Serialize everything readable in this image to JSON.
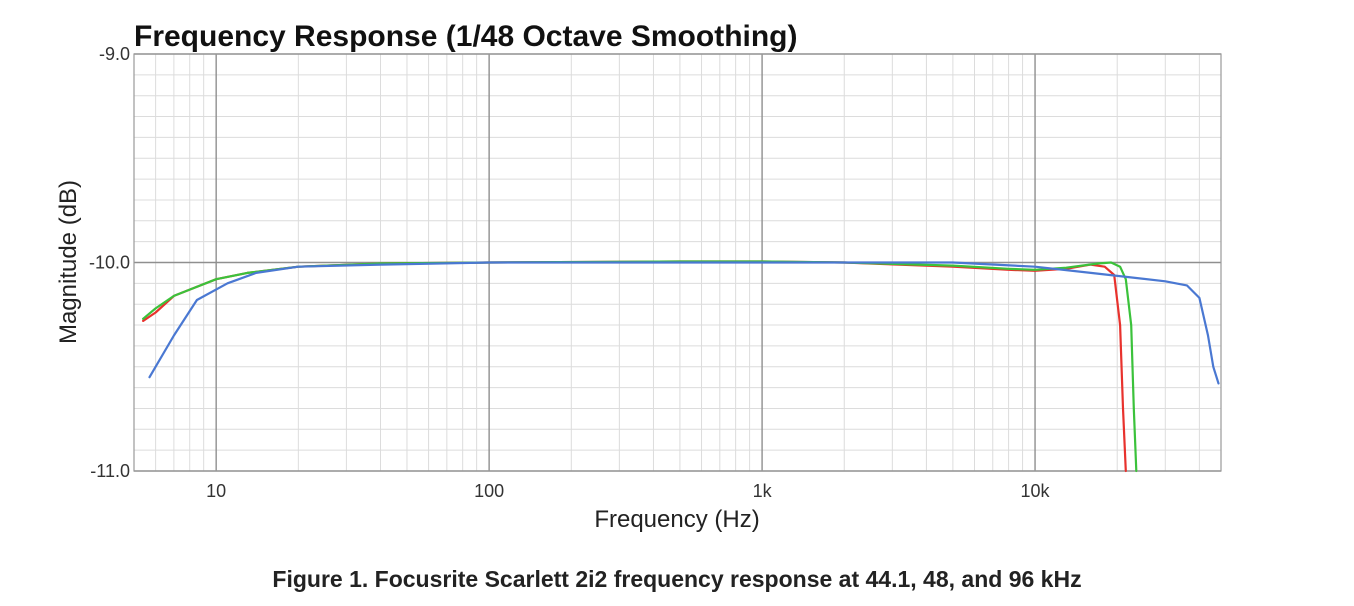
{
  "chart_data": {
    "type": "line",
    "title": "Frequency Response (1/48 Octave Smoothing)",
    "xlabel": "Frequency (Hz)",
    "ylabel": "Magnitude (dB)",
    "x_scale": "log",
    "xlim": [
      5,
      48000
    ],
    "ylim": [
      -11.0,
      -9.0
    ],
    "x_ticks": [
      {
        "value": 10,
        "label": "10"
      },
      {
        "value": 100,
        "label": "100"
      },
      {
        "value": 1000,
        "label": "1k"
      },
      {
        "value": 10000,
        "label": "10k"
      }
    ],
    "y_ticks": [
      {
        "value": -9.0,
        "label": "-9.0"
      },
      {
        "value": -10.0,
        "label": "-10.0"
      },
      {
        "value": -11.0,
        "label": "-11.0"
      }
    ],
    "grid": true,
    "series": [
      {
        "color": "#e8322d",
        "points": [
          [
            5.4,
            -10.28
          ],
          [
            6,
            -10.24
          ],
          [
            7,
            -10.16
          ],
          [
            8,
            -10.13
          ],
          [
            10,
            -10.08
          ],
          [
            13,
            -10.05
          ],
          [
            20,
            -10.02
          ],
          [
            40,
            -10.005
          ],
          [
            100,
            -10.0
          ],
          [
            500,
            -9.995
          ],
          [
            1000,
            -9.995
          ],
          [
            2000,
            -10.0
          ],
          [
            5000,
            -10.02
          ],
          [
            8000,
            -10.035
          ],
          [
            10000,
            -10.04
          ],
          [
            13000,
            -10.03
          ],
          [
            16000,
            -10.01
          ],
          [
            18000,
            -10.02
          ],
          [
            19500,
            -10.06
          ],
          [
            20500,
            -10.3
          ],
          [
            21000,
            -10.7
          ],
          [
            21500,
            -11.0
          ]
        ]
      },
      {
        "color": "#3bc23b",
        "points": [
          [
            5.4,
            -10.27
          ],
          [
            6,
            -10.22
          ],
          [
            7,
            -10.16
          ],
          [
            8,
            -10.13
          ],
          [
            10,
            -10.08
          ],
          [
            13,
            -10.05
          ],
          [
            20,
            -10.02
          ],
          [
            40,
            -10.005
          ],
          [
            100,
            -10.0
          ],
          [
            500,
            -9.995
          ],
          [
            1000,
            -9.995
          ],
          [
            2000,
            -10.0
          ],
          [
            5000,
            -10.015
          ],
          [
            8000,
            -10.03
          ],
          [
            10000,
            -10.035
          ],
          [
            13000,
            -10.025
          ],
          [
            17000,
            -10.005
          ],
          [
            19000,
            -10.0
          ],
          [
            20500,
            -10.02
          ],
          [
            21500,
            -10.08
          ],
          [
            22500,
            -10.3
          ],
          [
            23000,
            -10.7
          ],
          [
            23500,
            -11.0
          ]
        ]
      },
      {
        "color": "#4a78d2",
        "points": [
          [
            5.7,
            -10.55
          ],
          [
            7,
            -10.35
          ],
          [
            8.5,
            -10.18
          ],
          [
            11,
            -10.1
          ],
          [
            14,
            -10.05
          ],
          [
            20,
            -10.02
          ],
          [
            40,
            -10.01
          ],
          [
            100,
            -10.0
          ],
          [
            500,
            -10.0
          ],
          [
            1000,
            -10.0
          ],
          [
            2000,
            -10.0
          ],
          [
            5000,
            -10.0
          ],
          [
            10000,
            -10.02
          ],
          [
            16000,
            -10.05
          ],
          [
            22000,
            -10.07
          ],
          [
            30000,
            -10.09
          ],
          [
            36000,
            -10.11
          ],
          [
            40000,
            -10.17
          ],
          [
            43000,
            -10.35
          ],
          [
            45000,
            -10.5
          ],
          [
            47000,
            -10.58
          ]
        ]
      }
    ]
  },
  "caption": "Figure 1. Focusrite Scarlett 2i2 frequency response at 44.1, 48, and 96 kHz"
}
